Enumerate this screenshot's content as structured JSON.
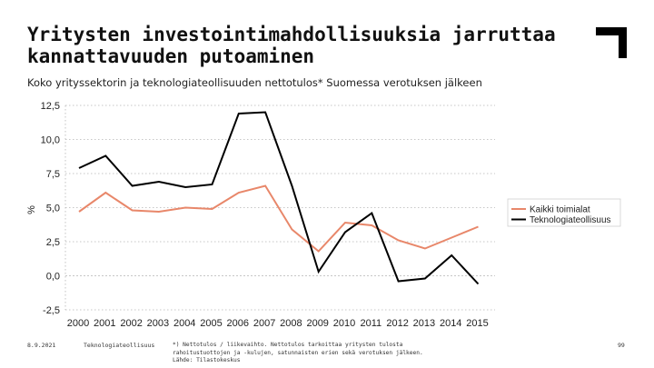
{
  "header": {
    "title_line1": "Yritysten investointimahdollisuuksia jarruttaa",
    "title_line2": "kannattavuuden putoaminen",
    "subtitle": "Koko yrityssektorin ja teknologiateollisuuden nettotulos* Suomessa verotuksen jälkeen"
  },
  "footer": {
    "date": "8.9.2021",
    "org": "Teknologiateollisuus",
    "note_line1": "*) Nettotulos / liikevaihto. Nettotulos tarkoittaa yritysten tulosta",
    "note_line2": "rahoitustuottojen ja -kulujen, satunnaisten erien sekä verotuksen jälkeen.",
    "source": "Lähde: Tilastokeskus",
    "page": "99"
  },
  "colors": {
    "series1": "#e8876a",
    "series2": "#000000",
    "grid": "#b5b5b5"
  },
  "chart_data": {
    "type": "line",
    "title": "",
    "xlabel": "",
    "ylabel": "%",
    "x": [
      "2000",
      "2001",
      "2002",
      "2003",
      "2004",
      "2005",
      "2006",
      "2007",
      "2008",
      "2009",
      "2010",
      "2011",
      "2012",
      "2013",
      "2014",
      "2015"
    ],
    "ylim": [
      -2.5,
      12.5
    ],
    "yticks": [
      "12,5",
      "10,0",
      "7,5",
      "5,0",
      "2,5",
      "0,0",
      "-2,5"
    ],
    "ytick_values": [
      12.5,
      10.0,
      7.5,
      5.0,
      2.5,
      0.0,
      -2.5
    ],
    "legend_position": "right",
    "series": [
      {
        "name": "Kaikki toimialat",
        "values": [
          4.7,
          6.1,
          4.8,
          4.7,
          5.0,
          4.9,
          6.1,
          6.6,
          3.4,
          1.8,
          3.9,
          3.7,
          2.6,
          2.0,
          2.8,
          3.6
        ]
      },
      {
        "name": "Teknologiateollisuus",
        "values": [
          7.9,
          8.8,
          6.6,
          6.9,
          6.5,
          6.7,
          11.9,
          12.0,
          6.6,
          0.3,
          3.2,
          4.6,
          -0.4,
          -0.2,
          1.5,
          -0.6
        ]
      }
    ]
  }
}
